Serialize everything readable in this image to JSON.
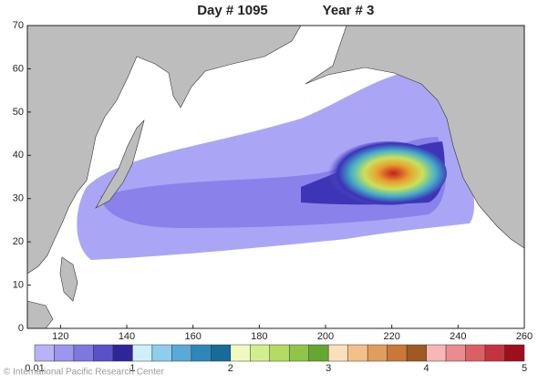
{
  "header": {
    "day": "Day # 1095",
    "year": "Year # 3"
  },
  "map": {
    "xlim": [
      110,
      260
    ],
    "ylim": [
      0,
      70
    ],
    "xticks": [
      120,
      140,
      160,
      180,
      200,
      220,
      240,
      260
    ],
    "yticks": [
      0,
      10,
      20,
      30,
      40,
      50,
      60,
      70
    ]
  },
  "colorbar": {
    "labels": [
      "0.01",
      "1",
      "2",
      "3",
      "4",
      "5"
    ],
    "colors": [
      "#b8b3f7",
      "#9d96ee",
      "#7f77e0",
      "#5a51c9",
      "#2e2698",
      "#cfeffb",
      "#8fcdec",
      "#5ba9d8",
      "#2f86bd",
      "#176b98",
      "#eefac0",
      "#d3ee8e",
      "#b2dc63",
      "#8fc64a",
      "#67a631",
      "#fde0bb",
      "#f4c089",
      "#e29c5c",
      "#c9783a",
      "#9e5a20",
      "#f7b6b8",
      "#ec8b8f",
      "#dd5f66",
      "#c43440",
      "#9e0f1e"
    ]
  },
  "credit": "© International Pacific Research Center"
}
